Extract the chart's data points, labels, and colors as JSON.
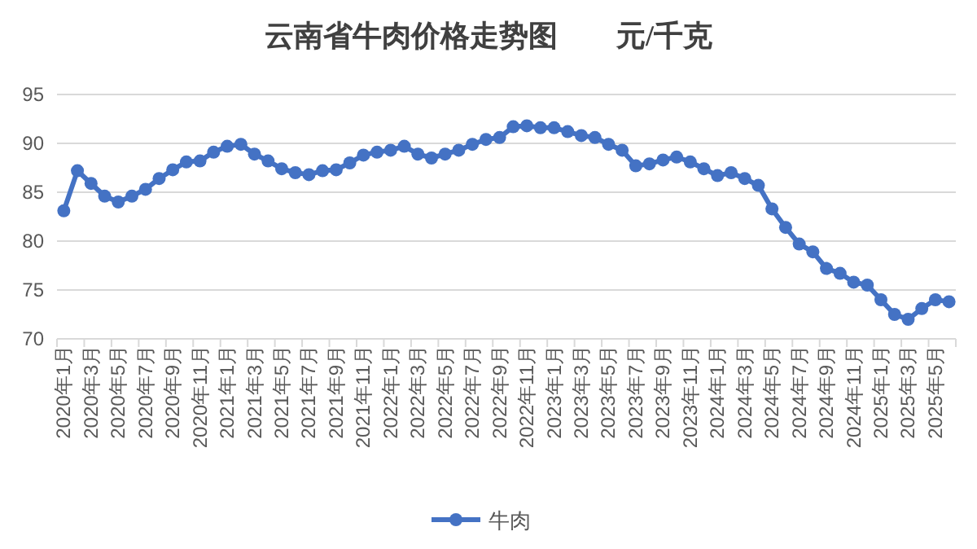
{
  "chart_data": {
    "type": "line",
    "title": "云南省牛肉价格走势图　　元/千克",
    "categories": [
      "2020年1月",
      null,
      "2020年3月",
      null,
      "2020年5月",
      null,
      "2020年7月",
      null,
      "2020年9月",
      null,
      "2020年11月",
      null,
      "2021年1月",
      null,
      "2021年3月",
      null,
      "2021年5月",
      null,
      "2021年7月",
      null,
      "2021年9月",
      null,
      "2021年11月",
      null,
      "2022年1月",
      null,
      "2022年3月",
      null,
      "2022年5月",
      null,
      "2022年7月",
      null,
      "2022年9月",
      null,
      "2022年11月",
      null,
      "2023年1月",
      null,
      "2023年3月",
      null,
      "2023年5月",
      null,
      "2023年7月",
      null,
      "2023年9月",
      null,
      "2023年11月",
      null,
      "2024年1月",
      null,
      "2024年3月",
      null,
      "2024年5月",
      null,
      "2024年7月",
      null,
      "2024年9月",
      null,
      "2024年11月",
      null,
      "2025年1月",
      null,
      "2025年3月",
      null,
      "2025年5月",
      null
    ],
    "series": [
      {
        "name": "牛肉",
        "color": "#4472c4",
        "values": [
          83.1,
          87.2,
          85.9,
          84.6,
          84.0,
          84.6,
          85.3,
          86.4,
          87.3,
          88.1,
          88.2,
          89.1,
          89.7,
          89.9,
          88.9,
          88.2,
          87.4,
          87.0,
          86.8,
          87.2,
          87.3,
          88.0,
          88.8,
          89.1,
          89.3,
          89.7,
          88.9,
          88.5,
          88.9,
          89.3,
          89.9,
          90.4,
          90.6,
          91.7,
          91.8,
          91.6,
          91.6,
          91.2,
          90.8,
          90.6,
          89.9,
          89.3,
          87.7,
          87.9,
          88.3,
          88.6,
          88.1,
          87.4,
          86.7,
          87.0,
          86.4,
          85.7,
          83.3,
          81.4,
          79.7,
          78.9,
          77.2,
          76.7,
          75.8,
          75.5,
          74.0,
          72.5,
          72.0,
          73.1,
          74.0,
          73.8
        ]
      }
    ],
    "ylim": [
      70,
      95
    ],
    "yticks": [
      70,
      75,
      80,
      85,
      90,
      95
    ],
    "grid": "y",
    "legend": "bottom",
    "marker": "circle"
  }
}
